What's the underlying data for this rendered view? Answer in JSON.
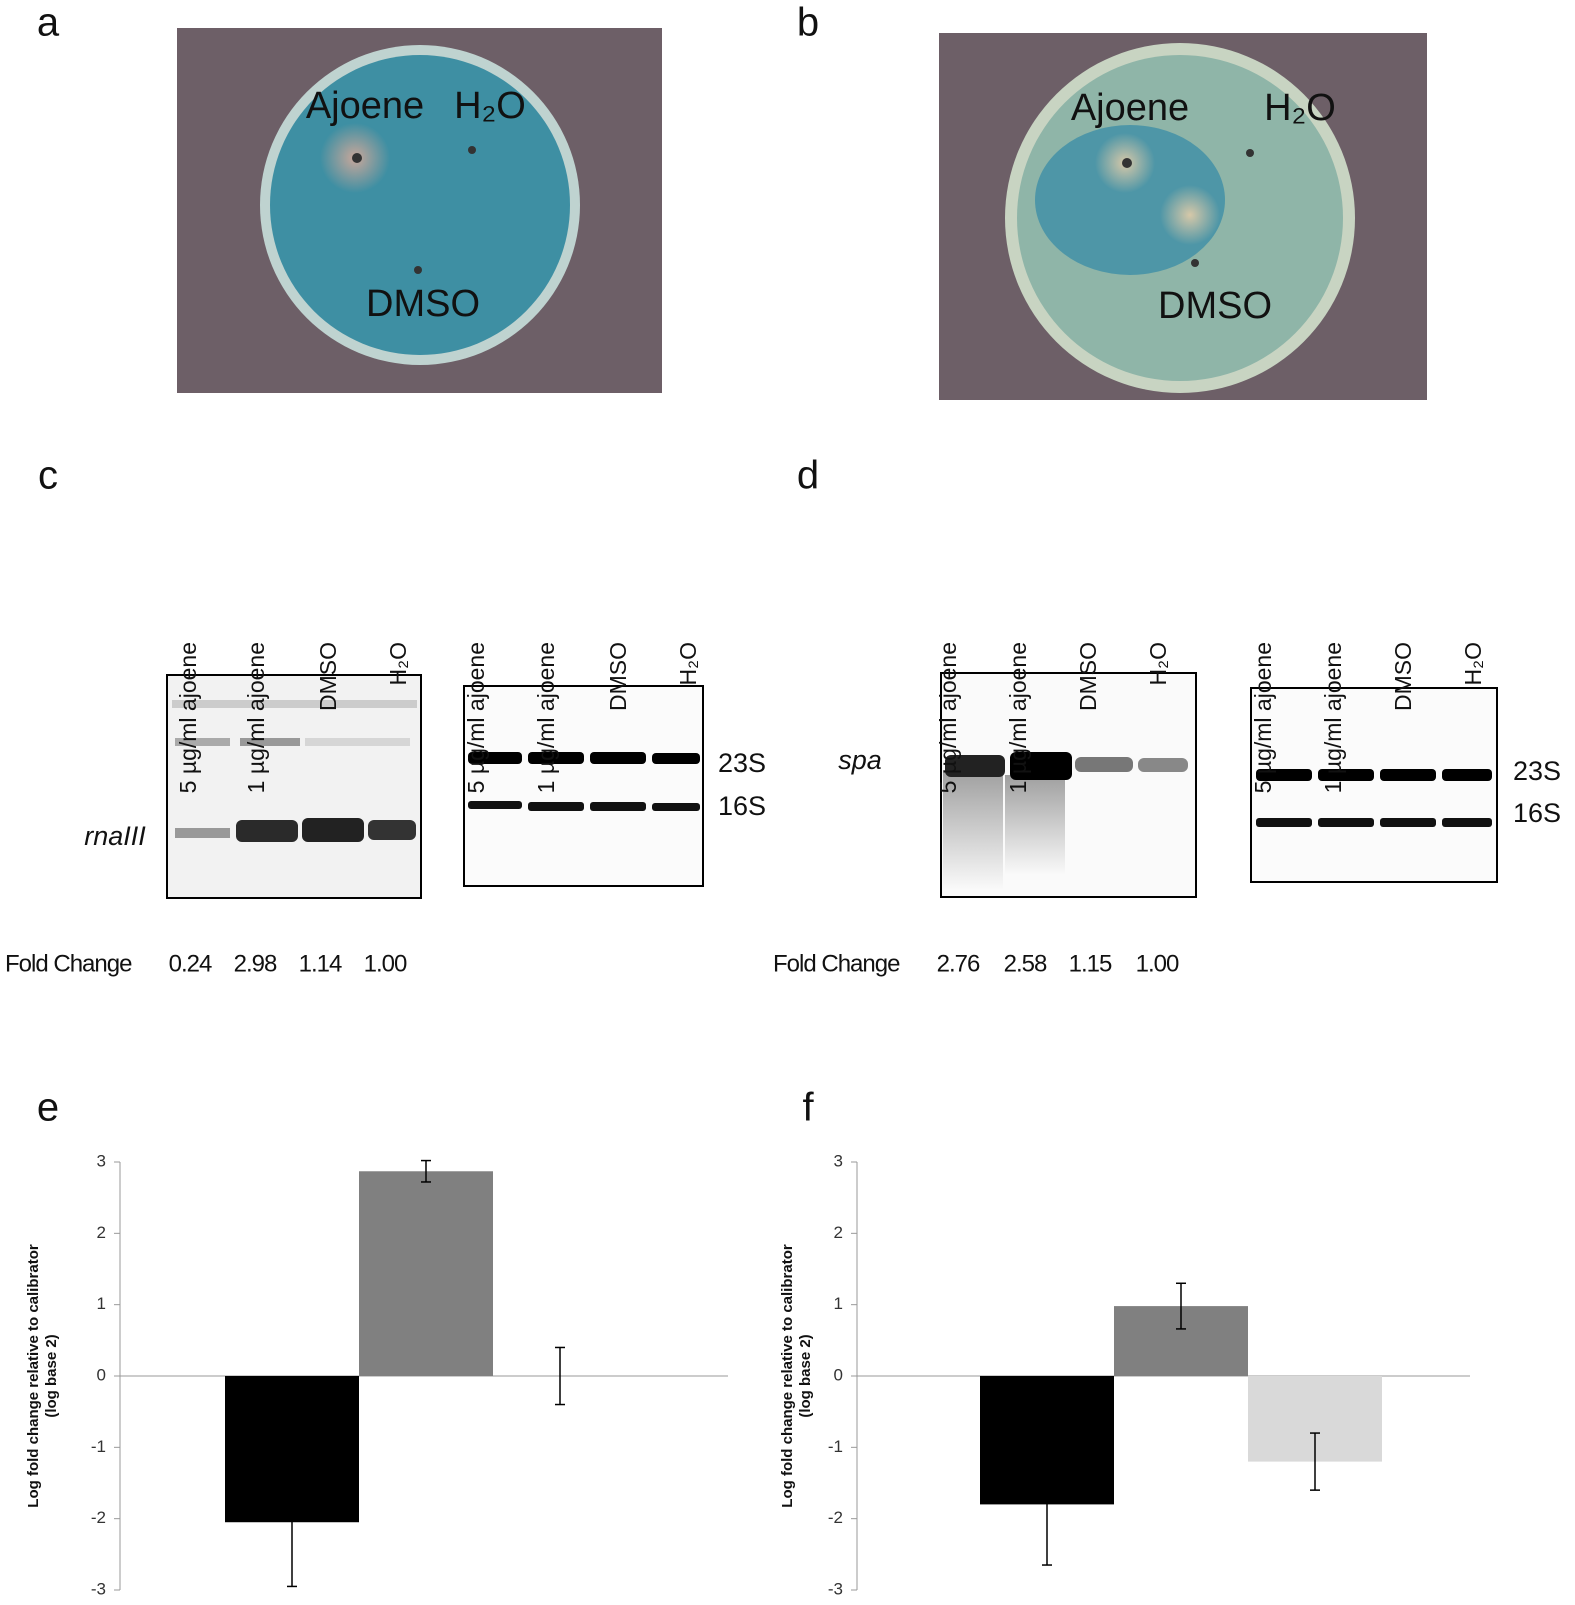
{
  "panels": {
    "a": {
      "label": "a",
      "labels": [
        "Ajoene",
        "H₂O",
        "DMSO"
      ]
    },
    "b": {
      "label": "b",
      "labels": [
        "Ajoene",
        "H₂O",
        "DMSO"
      ]
    },
    "c": {
      "label": "c",
      "blots": [
        {
          "lanes": [
            "5 µg/ml ajoene",
            "1 µg/ml ajoene",
            "DMSO",
            "H₂O"
          ]
        },
        {
          "lanes": [
            "5 µg/ml ajoene",
            "1 µg/ml ajoene",
            "DMSO",
            "H₂O"
          ]
        }
      ],
      "probe": "rnaIII",
      "bands": [
        "23S",
        "16S"
      ],
      "fold_change_label": "Fold Change",
      "fold_change": [
        "0.24",
        "2.98",
        "1.14",
        "1.00"
      ]
    },
    "d": {
      "label": "d",
      "blots": [
        {
          "lanes": [
            "5 µg/ml ajoene",
            "1 µg/ml ajoene",
            "DMSO",
            "H₂O"
          ]
        },
        {
          "lanes": [
            "5 µg/ml ajoene",
            "1 µg/ml ajoene",
            "DMSO",
            "H₂O"
          ]
        }
      ],
      "probe": "spa",
      "bands": [
        "23S",
        "16S"
      ],
      "fold_change_label": "Fold Change",
      "fold_change": [
        "2.76",
        "2.58",
        "1.15",
        "1.00"
      ]
    }
  },
  "chart_data": [
    {
      "type": "bar",
      "label": "e",
      "ylabel": [
        "Log fold change relative to calibrator",
        "(log base 2)"
      ],
      "categories": [
        null,
        null,
        null
      ],
      "values": [
        -2.05,
        2.87,
        0
      ],
      "errors": [
        0.9,
        0.15,
        0.4
      ],
      "colors": [
        "#000000",
        "#808080",
        "#d9d9d9"
      ],
      "ylim": [
        -3,
        3
      ],
      "yticks": [
        -3,
        -2,
        -1,
        0,
        1,
        2,
        3
      ]
    },
    {
      "type": "bar",
      "label": "f",
      "ylabel": [
        "Log fold change relative to calibrator",
        "(log base 2)"
      ],
      "categories": [
        null,
        null,
        null
      ],
      "values": [
        -1.8,
        0.98,
        -1.2
      ],
      "errors": [
        0.85,
        0.32,
        0.4
      ],
      "colors": [
        "#000000",
        "#808080",
        "#d9d9d9"
      ],
      "ylim": [
        -3,
        3
      ],
      "yticks": [
        -3,
        -2,
        -1,
        0,
        1,
        2,
        3
      ]
    }
  ]
}
